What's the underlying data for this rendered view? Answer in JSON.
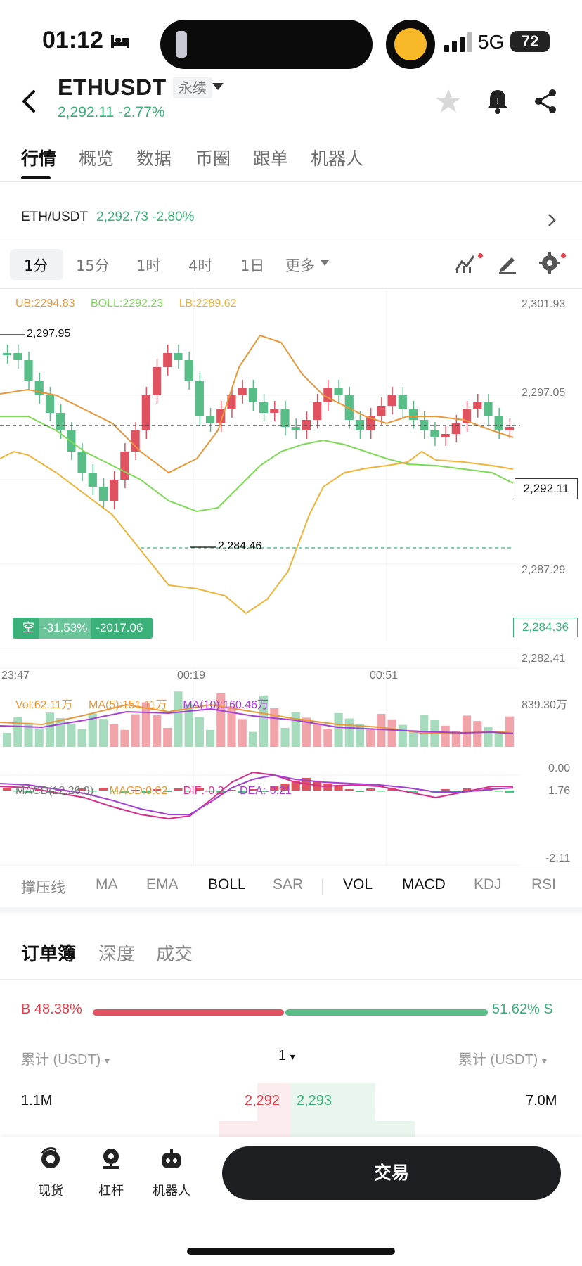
{
  "status_bar": {
    "time": "01:12",
    "network": "5G",
    "battery": "72"
  },
  "header": {
    "title": "ETHUSDT",
    "contract_type": "永续",
    "price_change": "2,292.11 -2.77%",
    "icons": [
      "back-arrow-icon",
      "star-icon",
      "bell-icon",
      "share-icon"
    ]
  },
  "tabs": [
    "行情",
    "概览",
    "数据",
    "币圈",
    "跟单",
    "机器人"
  ],
  "spot": {
    "symbol": "ETH/USDT",
    "value": "2,292.73 -2.80%"
  },
  "intervals": {
    "items": [
      "1分",
      "15分",
      "1时",
      "4时",
      "1日",
      "更多"
    ],
    "active": "1分"
  },
  "chart": {
    "boll_legend": {
      "ub": "UB:2294.83",
      "boll": "BOLL:2292.23",
      "lb": "LB:2289.62"
    },
    "price_axis": [
      "2,301.93",
      "2,297.05",
      "2,287.29",
      "2,282.41"
    ],
    "high_label": "2,297.95",
    "low_label": "2,284.46",
    "current_price_tag": "2,292.11",
    "low_price_tag": "2,284.36",
    "position": {
      "side": "空",
      "pnl_pct": "-31.53%",
      "pnl_value": "-2017.06"
    },
    "time_axis": [
      "23:47",
      "00:19",
      "00:51"
    ],
    "vol_legend": {
      "vol": "Vol:62.11万",
      "ma5": "MA(5):151.11万",
      "ma10": "MA(10):160.46万"
    },
    "vol_axis": [
      "839.30万",
      "0.00"
    ],
    "macd_legend": {
      "name": "MACD(12,26,9)",
      "macd": "MACD:0.02",
      "dif": "DIF:-0.2",
      "dea": "DEA:-0.21"
    },
    "macd_axis": [
      "1.76",
      "-2.11"
    ],
    "colors": {
      "up": "#e0525f",
      "down": "#58bd86",
      "ub": "#e8973a",
      "boll": "#7ed957",
      "lb": "#f1b43a",
      "ma10": "#a53fd6",
      "dif": "#d6308a"
    }
  },
  "chart_data": {
    "type": "candlestick",
    "x": [
      "23:47",
      "00:19",
      "00:51"
    ],
    "price_range": [
      2282.41,
      2301.93
    ],
    "high": 2297.95,
    "low": 2284.46,
    "last": 2292.11
  },
  "indicators": {
    "items": [
      "撑压线",
      "MA",
      "EMA",
      "BOLL",
      "SAR",
      "VOL",
      "MACD",
      "KDJ",
      "RSI"
    ],
    "active": [
      "BOLL",
      "VOL",
      "MACD"
    ]
  },
  "order_book": {
    "tabs": [
      "订单簿",
      "深度",
      "成交"
    ],
    "buy_ratio": "B 48.38%",
    "sell_ratio": "51.62% S",
    "buy_fraction": 0.4838,
    "header_left": "累计 (USDT)",
    "header_mid": "1",
    "header_right": "累计 (USDT)",
    "row": {
      "bid_total": "1.1M",
      "bid_price": "2,292",
      "ask_price": "2,293",
      "ask_total": "7.0M"
    }
  },
  "bottom_nav": {
    "items": [
      {
        "label": "现货",
        "icon": "spot-icon"
      },
      {
        "label": "杠杆",
        "icon": "margin-icon"
      },
      {
        "label": "机器人",
        "icon": "robot-icon"
      }
    ],
    "trade_button": "交易"
  }
}
